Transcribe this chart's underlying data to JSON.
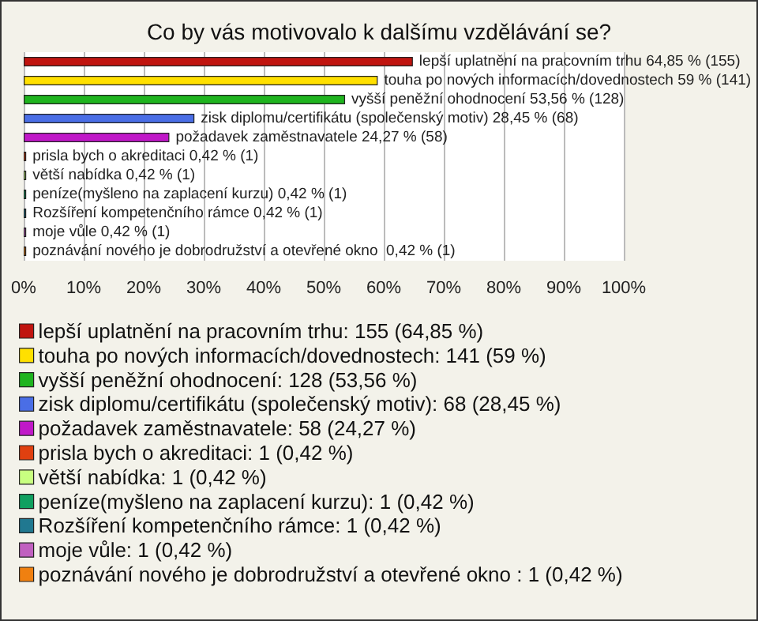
{
  "chart_data": {
    "type": "bar",
    "orientation": "horizontal",
    "stacked": true,
    "title": "Co by vás motivovalo k dalšímu vzdělávání se?",
    "categories": [
      null,
      null,
      null,
      null,
      null,
      null,
      null,
      null,
      null,
      null,
      null
    ],
    "series": [
      {
        "name": "lepší uplatnění na pracovním trhu: 155 (64,85 %)",
        "color": "#c0140f",
        "values": [
          64.85,
          null,
          null,
          null,
          null,
          null,
          null,
          null,
          null,
          null,
          null
        ],
        "value_labels": [
          "lepší uplatnění na pracovním trhu 64,85 % (155)",
          null,
          null,
          null,
          null,
          null,
          null,
          null,
          null,
          null,
          null
        ]
      },
      {
        "name": "touha po nových informacích/dovednostech: 141 (59 %)",
        "color": "#ffe000",
        "values": [
          null,
          59,
          null,
          null,
          null,
          null,
          null,
          null,
          null,
          null,
          null
        ],
        "value_labels": [
          null,
          "touha po nových informacích/dovednostech 59 % (141)",
          null,
          null,
          null,
          null,
          null,
          null,
          null,
          null,
          null
        ]
      },
      {
        "name": "vyšší peněžní ohodnocení: 128 (53,56 %)",
        "color": "#1fb41f",
        "values": [
          null,
          null,
          53.56,
          null,
          null,
          null,
          null,
          null,
          null,
          null,
          null
        ],
        "value_labels": [
          null,
          null,
          "vyšší peněžní ohodnocení 53,56 % (128)",
          null,
          null,
          null,
          null,
          null,
          null,
          null,
          null
        ]
      },
      {
        "name": "zisk diplomu/certifikátu (společenský motiv): 68 (28,45 %)",
        "color": "#4a6ee6",
        "values": [
          null,
          null,
          null,
          28.45,
          null,
          null,
          null,
          null,
          null,
          null,
          null
        ],
        "value_labels": [
          null,
          null,
          null,
          "zisk diplomu/certifikátu (společenský motiv) 28,45 % (68)",
          null,
          null,
          null,
          null,
          null,
          null,
          null
        ]
      },
      {
        "name": "požadavek zaměstnavatele: 58 (24,27 %)",
        "color": "#c018c8",
        "values": [
          null,
          null,
          null,
          null,
          24.27,
          null,
          null,
          null,
          null,
          null,
          null
        ],
        "value_labels": [
          null,
          null,
          null,
          null,
          "požadavek zaměstnavatele 24,27 % (58)",
          null,
          null,
          null,
          null,
          null,
          null
        ]
      },
      {
        "name": "prisla bych o akreditaci: 1 (0,42 %)",
        "color": "#e04010",
        "values": [
          null,
          null,
          null,
          null,
          null,
          0.42,
          null,
          null,
          null,
          null,
          null
        ],
        "value_labels": [
          null,
          null,
          null,
          null,
          null,
          "prisla bych o akreditaci 0,42 % (1)",
          null,
          null,
          null,
          null,
          null
        ]
      },
      {
        "name": "větší nabídka: 1 (0,42 %)",
        "color": "#c8ff80",
        "values": [
          null,
          null,
          null,
          null,
          null,
          null,
          0.42,
          null,
          null,
          null,
          null
        ],
        "value_labels": [
          null,
          null,
          null,
          null,
          null,
          null,
          "větší nabídka 0,42 % (1)",
          null,
          null,
          null,
          null
        ]
      },
      {
        "name": "peníze(myšleno na zaplacení kurzu): 1 (0,42 %)",
        "color": "#10a060",
        "values": [
          null,
          null,
          null,
          null,
          null,
          null,
          null,
          0.42,
          null,
          null,
          null
        ],
        "value_labels": [
          null,
          null,
          null,
          null,
          null,
          null,
          null,
          "peníze(myšleno na zaplacení kurzu) 0,42 % (1)",
          null,
          null,
          null
        ]
      },
      {
        "name": "Rozšíření kompetenčního rámce: 1 (0,42 %)",
        "color": "#207890",
        "values": [
          null,
          null,
          null,
          null,
          null,
          null,
          null,
          null,
          0.42,
          null,
          null
        ],
        "value_labels": [
          null,
          null,
          null,
          null,
          null,
          null,
          null,
          null,
          "Rozšíření kompetenčního rámce 0,42 % (1)",
          null,
          null
        ]
      },
      {
        "name": "moje vůle: 1 (0,42 %)",
        "color": "#c060c0",
        "values": [
          null,
          null,
          null,
          null,
          null,
          null,
          null,
          null,
          null,
          0.42,
          null
        ],
        "value_labels": [
          null,
          null,
          null,
          null,
          null,
          null,
          null,
          null,
          null,
          "moje vůle 0,42 % (1)",
          null
        ]
      },
      {
        "name": "poznávání nového je dobrodružství a otevřené okno : 1 (0,42 %)",
        "color": "#f08010",
        "values": [
          null,
          null,
          null,
          null,
          null,
          null,
          null,
          null,
          null,
          null,
          0.42
        ],
        "value_labels": [
          null,
          null,
          null,
          null,
          null,
          null,
          null,
          null,
          null,
          null,
          "poznávání nového je dobrodružství a otevřené okno  0,42 % (1)"
        ]
      }
    ],
    "xlim": [
      0,
      100
    ],
    "xticks": [
      {
        "value": 0,
        "label": "0%"
      },
      {
        "value": 10,
        "label": "10%"
      },
      {
        "value": 20,
        "label": "20%"
      },
      {
        "value": 30,
        "label": "30%"
      },
      {
        "value": 40,
        "label": "40%"
      },
      {
        "value": 50,
        "label": "50%"
      },
      {
        "value": 60,
        "label": "60%"
      },
      {
        "value": 70,
        "label": "70%"
      },
      {
        "value": 80,
        "label": "80%"
      },
      {
        "value": 90,
        "label": "90%"
      },
      {
        "value": 100,
        "label": "100%"
      }
    ],
    "grid": "x",
    "legend": "bottom",
    "tick_labels": "x"
  }
}
